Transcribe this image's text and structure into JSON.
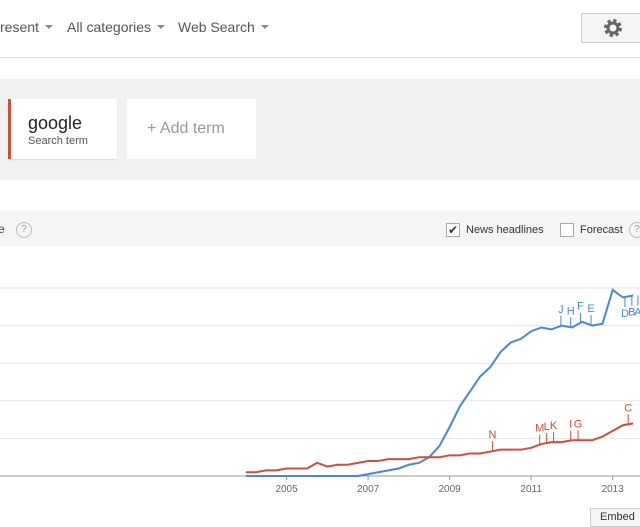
{
  "toolbar": {
    "time": "resent",
    "category": "All categories",
    "search_type": "Web Search"
  },
  "terms": {
    "term": "google",
    "term_kind": "Search term",
    "add_term": "+ Add term"
  },
  "chart_header": {
    "title": "e",
    "help": "?",
    "news_headlines": {
      "label": "News headlines",
      "checked": true
    },
    "forecast": {
      "label": "Forecast",
      "checked": false
    },
    "forecast_help": "?"
  },
  "embed": "Embed",
  "chart_data": {
    "type": "line",
    "x": [
      2004,
      2004.25,
      2004.5,
      2004.75,
      2005,
      2005.25,
      2005.5,
      2005.75,
      2006,
      2006.25,
      2006.5,
      2006.75,
      2007,
      2007.25,
      2007.5,
      2007.75,
      2008,
      2008.25,
      2008.5,
      2008.75,
      2009,
      2009.25,
      2009.5,
      2009.75,
      2010,
      2010.25,
      2010.5,
      2010.75,
      2011,
      2011.25,
      2011.5,
      2011.75,
      2012,
      2012.25,
      2012.5,
      2012.75,
      2013,
      2013.25,
      2013.5
    ],
    "series": [
      {
        "color": "#4a86d4",
        "values": [
          0,
          0,
          0,
          0,
          0,
          0,
          0,
          0,
          0,
          0,
          0,
          0,
          1,
          2,
          3,
          4,
          6,
          7,
          10,
          16,
          26,
          37,
          45,
          53,
          58,
          66,
          71,
          73,
          77,
          79,
          78,
          80,
          79,
          82,
          80,
          81,
          99,
          95,
          96
        ]
      },
      {
        "color": "#c9503c",
        "values": [
          2,
          2,
          3,
          3,
          4,
          4,
          4,
          7,
          5,
          6,
          6,
          7,
          8,
          8,
          9,
          9,
          9,
          10,
          10,
          10,
          11,
          11,
          12,
          12,
          13,
          14,
          14,
          14,
          15,
          17,
          18,
          18,
          19,
          19,
          19,
          21,
          24,
          27,
          28
        ]
      }
    ],
    "annotations": [
      {
        "label": "J",
        "x": 2011.73,
        "series": 0
      },
      {
        "label": "H",
        "x": 2011.97,
        "series": 0
      },
      {
        "label": "F",
        "x": 2012.21,
        "series": 0
      },
      {
        "label": "E",
        "x": 2012.47,
        "series": 0
      },
      {
        "label": "D",
        "x": 2013.3,
        "series": 0,
        "position": "below"
      },
      {
        "label": "B",
        "x": 2013.47,
        "series": 0,
        "position": "below"
      },
      {
        "label": "A",
        "x": 2013.62,
        "series": 0,
        "position": "below"
      },
      {
        "label": "N",
        "x": 2010.05,
        "series": 1
      },
      {
        "label": "M",
        "x": 2011.21,
        "series": 1
      },
      {
        "label": "L",
        "x": 2011.38,
        "series": 1
      },
      {
        "label": "K",
        "x": 2011.55,
        "series": 1
      },
      {
        "label": "I",
        "x": 2011.97,
        "series": 1
      },
      {
        "label": "G",
        "x": 2012.15,
        "series": 1
      },
      {
        "label": "C",
        "x": 2013.38,
        "series": 1
      }
    ],
    "xlim": [
      1997.97,
      2013.67
    ],
    "xticks": [
      2005,
      2007,
      2009,
      2011,
      2013
    ],
    "ylim": [
      0,
      100
    ],
    "ygrid": [
      20,
      40,
      60,
      80,
      100
    ]
  }
}
